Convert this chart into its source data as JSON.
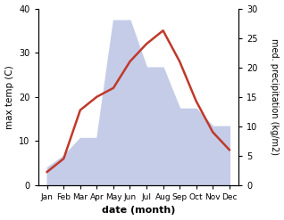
{
  "months": [
    "Jan",
    "Feb",
    "Mar",
    "Apr",
    "May",
    "Jun",
    "Jul",
    "Aug",
    "Sep",
    "Oct",
    "Nov",
    "Dec"
  ],
  "max_temp": [
    3,
    6,
    17,
    20,
    22,
    28,
    32,
    35,
    28,
    19,
    12,
    8
  ],
  "precipitation": [
    3,
    5,
    8,
    8,
    28,
    28,
    20,
    20,
    13,
    13,
    10,
    10
  ],
  "temp_color": "#c0392b",
  "precip_fill_color": "#c5cce8",
  "ylim_left": [
    0,
    40
  ],
  "ylim_right": [
    0,
    30
  ],
  "xlabel": "date (month)",
  "ylabel_left": "max temp (C)",
  "ylabel_right": "med. precipitation (kg/m2)",
  "background_color": "#ffffff",
  "left_tick_values": [
    0,
    10,
    20,
    30,
    40
  ],
  "right_tick_values": [
    0,
    5,
    10,
    15,
    20,
    25,
    30
  ]
}
